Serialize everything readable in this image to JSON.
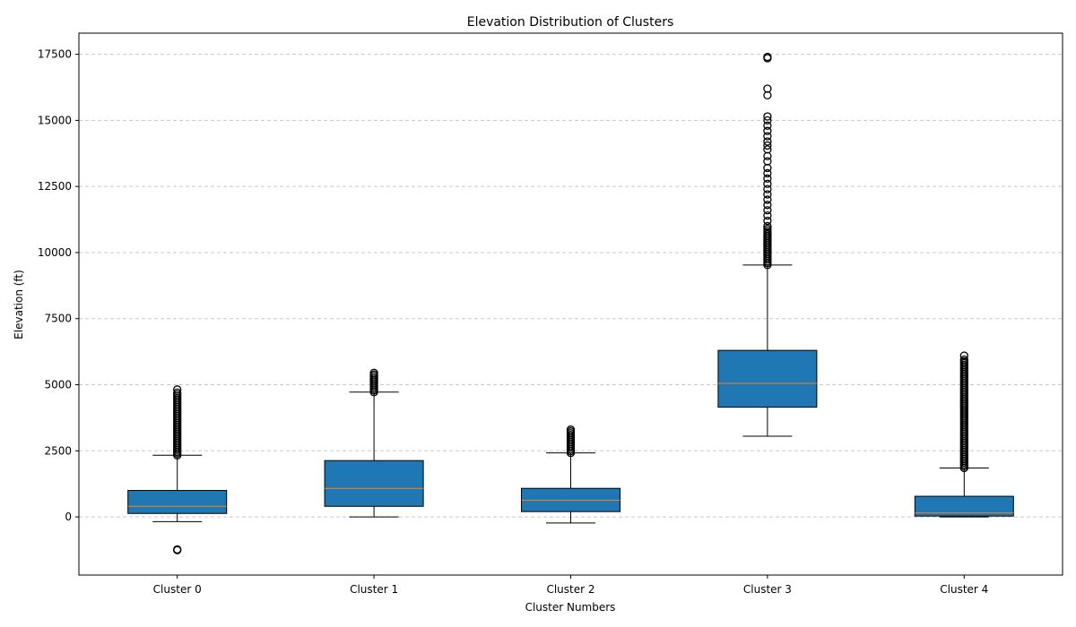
{
  "chart_data": {
    "type": "box",
    "title": "Elevation Distribution of Clusters",
    "xlabel": "Cluster Numbers",
    "ylabel": "Elevation (ft)",
    "ylim": [
      -2200,
      18300
    ],
    "yticks": [
      0,
      2500,
      5000,
      7500,
      10000,
      12500,
      15000,
      17500
    ],
    "grid": {
      "y": true,
      "style": "dashed"
    },
    "colors": {
      "box_fill": "#1f77b4",
      "median": "#ff7f0e",
      "edge": "#000000",
      "grid": "#c8c8c8"
    },
    "categories": [
      "Cluster 0",
      "Cluster 1",
      "Cluster 2",
      "Cluster 3",
      "Cluster 4"
    ],
    "boxes": [
      {
        "name": "Cluster 0",
        "whisker_low": -180,
        "q1": 130,
        "median": 400,
        "q3": 1000,
        "whisker_high": 2330,
        "outliers_range": [
          2330,
          4700
        ],
        "outliers_extra": [
          4820,
          -1230,
          -1260
        ]
      },
      {
        "name": "Cluster 1",
        "whisker_low": 0,
        "q1": 400,
        "median": 1080,
        "q3": 2130,
        "whisker_high": 4720,
        "outliers_range": [
          4720,
          5450
        ],
        "outliers_extra": []
      },
      {
        "name": "Cluster 2",
        "whisker_low": -230,
        "q1": 200,
        "median": 630,
        "q3": 1080,
        "whisker_high": 2420,
        "outliers_range": [
          2420,
          3300
        ],
        "outliers_extra": []
      },
      {
        "name": "Cluster 3",
        "whisker_low": 3050,
        "q1": 4150,
        "median": 5050,
        "q3": 6300,
        "whisker_high": 9530,
        "outliers_range": [
          9530,
          10900
        ],
        "outliers_extra": [
          11000,
          11200,
          11400,
          11600,
          11800,
          12000,
          12200,
          12400,
          12600,
          12800,
          13000,
          13200,
          13450,
          13650,
          13900,
          14050,
          14200,
          14400,
          14600,
          14800,
          15000,
          15150,
          15950,
          16200,
          17350,
          17400
        ]
      },
      {
        "name": "Cluster 4",
        "whisker_low": 0,
        "q1": 30,
        "median": 150,
        "q3": 780,
        "whisker_high": 1850,
        "outliers_range": [
          1850,
          5950
        ],
        "outliers_extra": [
          6100
        ]
      }
    ]
  }
}
